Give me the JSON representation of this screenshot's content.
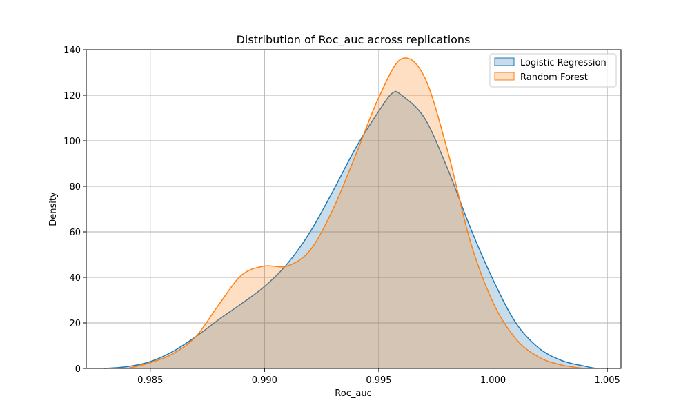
{
  "chart_data": {
    "type": "area",
    "title": "Distribution of Roc_auc across replications",
    "xlabel": "Roc_auc",
    "ylabel": "Density",
    "xlim": [
      0.9822,
      1.0056
    ],
    "ylim": [
      0,
      140
    ],
    "x_ticks": [
      0.985,
      0.99,
      0.995,
      1.0,
      1.005
    ],
    "x_tick_labels": [
      "0.985",
      "0.990",
      "0.995",
      "1.000",
      "1.005"
    ],
    "y_ticks": [
      0,
      20,
      40,
      60,
      80,
      100,
      120,
      140
    ],
    "y_tick_labels": [
      "0",
      "20",
      "40",
      "60",
      "80",
      "100",
      "120",
      "140"
    ],
    "grid": true,
    "legend_position": "top-right",
    "series": [
      {
        "name": "Logistic Regression",
        "line_color": "#1f77b4",
        "fill_color": "#1f77b4",
        "fill_opacity": 0.25,
        "points": [
          [
            0.983,
            0.0
          ],
          [
            0.984,
            0.8
          ],
          [
            0.985,
            3.0
          ],
          [
            0.986,
            7.5
          ],
          [
            0.987,
            14.0
          ],
          [
            0.988,
            21.5
          ],
          [
            0.989,
            28.5
          ],
          [
            0.99,
            36.0
          ],
          [
            0.991,
            46.0
          ],
          [
            0.992,
            60.0
          ],
          [
            0.993,
            78.0
          ],
          [
            0.994,
            97.0
          ],
          [
            0.995,
            113.0
          ],
          [
            0.9956,
            121.0
          ],
          [
            0.996,
            120.0
          ],
          [
            0.997,
            110.0
          ],
          [
            0.998,
            88.0
          ],
          [
            0.999,
            62.0
          ],
          [
            1.0,
            39.0
          ],
          [
            1.001,
            20.0
          ],
          [
            1.002,
            9.0
          ],
          [
            1.003,
            3.5
          ],
          [
            1.004,
            1.0
          ],
          [
            1.0045,
            0.0
          ]
        ]
      },
      {
        "name": "Random Forest",
        "line_color": "#ff7f0e",
        "fill_color": "#ff7f0e",
        "fill_opacity": 0.25,
        "points": [
          [
            0.984,
            0.0
          ],
          [
            0.985,
            2.5
          ],
          [
            0.986,
            6.5
          ],
          [
            0.987,
            14.0
          ],
          [
            0.988,
            28.0
          ],
          [
            0.989,
            41.0
          ],
          [
            0.99,
            45.0
          ],
          [
            0.991,
            45.0
          ],
          [
            0.992,
            52.0
          ],
          [
            0.993,
            70.0
          ],
          [
            0.994,
            94.0
          ],
          [
            0.995,
            119.0
          ],
          [
            0.996,
            136.0
          ],
          [
            0.997,
            128.0
          ],
          [
            0.998,
            96.0
          ],
          [
            0.999,
            56.0
          ],
          [
            1.0,
            29.0
          ],
          [
            1.001,
            13.0
          ],
          [
            1.002,
            5.0
          ],
          [
            1.003,
            1.5
          ],
          [
            1.004,
            0.0
          ]
        ]
      }
    ]
  }
}
